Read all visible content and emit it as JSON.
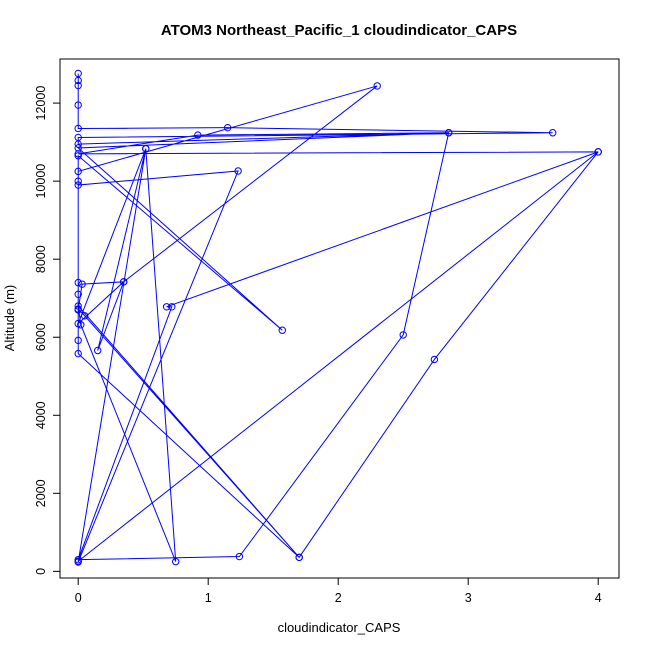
{
  "chart_data": {
    "type": "line",
    "title": "ATOM3 Northeast_Pacific_1 cloudindicator_CAPS",
    "xlabel": "cloudindicator_CAPS",
    "ylabel": "Altitude (m)",
    "xlim": [
      -0.14,
      4.16
    ],
    "ylim": [
      -170,
      13130
    ],
    "xticks": [
      0,
      1,
      2,
      3,
      4
    ],
    "yticks": [
      0,
      2000,
      4000,
      6000,
      8000,
      10000,
      12000
    ],
    "grid": false,
    "legend": "none",
    "color": "#0000ff",
    "series": [
      {
        "points": [
          [
            0,
            12760
          ],
          [
            0,
            12580
          ],
          [
            0,
            12450
          ],
          [
            0,
            11950
          ],
          [
            0,
            11350
          ],
          [
            1.15,
            11370
          ],
          [
            3.65,
            11240
          ],
          [
            0,
            11120
          ],
          [
            0,
            10950
          ],
          [
            2.85,
            11240
          ],
          [
            0.92,
            11180
          ],
          [
            0,
            10700
          ],
          [
            4.0,
            10750
          ],
          [
            0.68,
            6780
          ],
          [
            0.72,
            6780
          ],
          [
            0,
            300
          ],
          [
            1.24,
            380
          ],
          [
            2.5,
            6060
          ],
          [
            2.85,
            11240
          ],
          [
            0,
            10850
          ],
          [
            1.57,
            6180
          ],
          [
            0,
            10650
          ],
          [
            0,
            10000
          ],
          [
            0,
            9900
          ],
          [
            1.23,
            10260
          ],
          [
            0,
            240
          ],
          [
            0.52,
            10830
          ],
          [
            0,
            6350
          ],
          [
            0.35,
            7420
          ],
          [
            2.3,
            12440
          ],
          [
            0,
            10250
          ],
          [
            0,
            7400
          ],
          [
            0,
            7100
          ],
          [
            0,
            6720
          ],
          [
            0.05,
            6550
          ],
          [
            1.7,
            360
          ],
          [
            0,
            6800
          ],
          [
            0.02,
            6320
          ],
          [
            0.75,
            250
          ],
          [
            0.52,
            10830
          ],
          [
            0.15,
            5660
          ],
          [
            0.35,
            7420
          ],
          [
            0.03,
            7360
          ],
          [
            0,
            6700
          ],
          [
            0,
            5920
          ],
          [
            0,
            5580
          ],
          [
            1.7,
            360
          ],
          [
            2.74,
            5430
          ],
          [
            4.0,
            10750
          ],
          [
            0,
            260
          ]
        ]
      }
    ]
  }
}
